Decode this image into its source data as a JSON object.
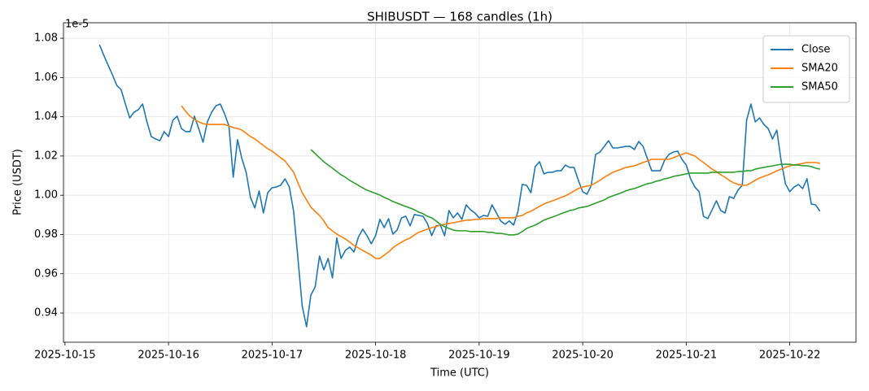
{
  "chart_data": {
    "type": "line",
    "title": "SHIBUSDT — 168 candles (1h)",
    "x_label": "Time (UTC)",
    "y_label": "Price (USDT)",
    "y_scale_label": "1e-5",
    "grid": true,
    "legend": "upper right",
    "xlim": [
      -8.35,
      175.35
    ],
    "ylim": [
      0.9251,
      1.0879
    ],
    "xticks": [
      {
        "value": -8,
        "label": "2025-10-15"
      },
      {
        "value": 16,
        "label": "2025-10-16"
      },
      {
        "value": 40,
        "label": "2025-10-17"
      },
      {
        "value": 64,
        "label": "2025-10-18"
      },
      {
        "value": 88,
        "label": "2025-10-19"
      },
      {
        "value": 112,
        "label": "2025-10-20"
      },
      {
        "value": 136,
        "label": "2025-10-21"
      },
      {
        "value": 160,
        "label": "2025-10-22"
      }
    ],
    "yticks": [
      0.94,
      0.96,
      0.98,
      {
        "value": 1.0,
        "label": "1.00"
      },
      1.02,
      1.04,
      1.06,
      1.08
    ],
    "x": [
      0,
      1,
      2,
      3,
      4,
      5,
      6,
      7,
      8,
      9,
      10,
      11,
      12,
      13,
      14,
      15,
      16,
      17,
      18,
      19,
      20,
      21,
      22,
      23,
      24,
      25,
      26,
      27,
      28,
      29,
      30,
      31,
      32,
      33,
      34,
      35,
      36,
      37,
      38,
      39,
      40,
      41,
      42,
      43,
      44,
      45,
      46,
      47,
      48,
      49,
      50,
      51,
      52,
      53,
      54,
      55,
      56,
      57,
      58,
      59,
      60,
      61,
      62,
      63,
      64,
      65,
      66,
      67,
      68,
      69,
      70,
      71,
      72,
      73,
      74,
      75,
      76,
      77,
      78,
      79,
      80,
      81,
      82,
      83,
      84,
      85,
      86,
      87,
      88,
      89,
      90,
      91,
      92,
      93,
      94,
      95,
      96,
      97,
      98,
      99,
      100,
      101,
      102,
      103,
      104,
      105,
      106,
      107,
      108,
      109,
      110,
      111,
      112,
      113,
      114,
      115,
      116,
      117,
      118,
      119,
      120,
      121,
      122,
      123,
      124,
      125,
      126,
      127,
      128,
      129,
      130,
      131,
      132,
      133,
      134,
      135,
      136,
      137,
      138,
      139,
      140,
      141,
      142,
      143,
      144,
      145,
      146,
      147,
      148,
      149,
      150,
      151,
      152,
      153,
      154,
      155,
      156,
      157,
      158,
      159,
      160,
      161,
      162,
      163,
      164,
      165,
      166,
      167
    ],
    "series": [
      {
        "name": "Close",
        "color": "#1f77b4",
        "values": [
          1.0767,
          1.0713,
          1.0663,
          1.0614,
          1.056,
          1.0539,
          1.0465,
          1.0394,
          1.0423,
          1.0436,
          1.0465,
          1.0374,
          1.0299,
          1.0287,
          1.0278,
          1.0324,
          1.0299,
          1.0382,
          1.0403,
          1.034,
          1.0324,
          1.0324,
          1.0403,
          1.034,
          1.027,
          1.0374,
          1.0423,
          1.0456,
          1.0465,
          1.0415,
          1.0353,
          1.0092,
          1.0283,
          1.0187,
          1.0117,
          0.9989,
          0.9935,
          1.0022,
          0.991,
          1.0013,
          1.0038,
          1.0042,
          1.0051,
          1.0084,
          1.0042,
          0.9918,
          0.9678,
          0.9434,
          0.933,
          0.9492,
          0.9533,
          0.969,
          0.962,
          0.9678,
          0.9579,
          0.9782,
          0.9678,
          0.9719,
          0.9736,
          0.9711,
          0.9786,
          0.9827,
          0.9794,
          0.9753,
          0.9794,
          0.9877,
          0.9835,
          0.9881,
          0.9802,
          0.9823,
          0.9885,
          0.9893,
          0.9844,
          0.9902,
          0.9897,
          0.9893,
          0.9856,
          0.9794,
          0.9844,
          0.9848,
          0.9794,
          0.9922,
          0.9885,
          0.991,
          0.9877,
          0.9951,
          0.9926,
          0.991,
          0.9885,
          0.9897,
          0.9893,
          0.9951,
          0.991,
          0.9869,
          0.9852,
          0.9869,
          0.9848,
          0.9918,
          1.0055,
          1.0051,
          1.0013,
          1.0146,
          1.0171,
          1.0109,
          1.0117,
          1.0117,
          1.0125,
          1.0125,
          1.0154,
          1.0142,
          1.0142,
          1.0076,
          1.0018,
          1.0005,
          1.0051,
          1.0208,
          1.022,
          1.0249,
          1.0278,
          1.0241,
          1.0241,
          1.0245,
          1.0249,
          1.0249,
          1.0233,
          1.0274,
          1.0249,
          1.0187,
          1.0125,
          1.0125,
          1.0125,
          1.0179,
          1.0208,
          1.022,
          1.0225,
          1.0183,
          1.0154,
          1.0084,
          1.0042,
          1.0018,
          0.9893,
          0.9881,
          0.9926,
          0.9972,
          0.9922,
          0.991,
          0.9993,
          0.9984,
          1.0026,
          1.0051,
          1.0382,
          1.0465,
          1.0374,
          1.0394,
          1.0361,
          1.034,
          1.0287,
          1.0332,
          1.0175,
          1.0059,
          1.0018,
          1.0042,
          1.0055,
          1.0034,
          1.0084,
          0.9955,
          0.9951,
          0.9918
        ]
      },
      {
        "name": "SMA20",
        "color": "#ff7f0e",
        "values": [
          null,
          null,
          null,
          null,
          null,
          null,
          null,
          null,
          null,
          null,
          null,
          null,
          null,
          null,
          null,
          null,
          null,
          null,
          null,
          1.0456,
          1.0427,
          1.0403,
          1.0386,
          1.0374,
          1.0365,
          1.0361,
          1.0361,
          1.0361,
          1.0361,
          1.0361,
          1.0353,
          1.0345,
          1.034,
          1.0332,
          1.0316,
          1.0299,
          1.0287,
          1.027,
          1.0254,
          1.0237,
          1.0225,
          1.0208,
          1.0191,
          1.0175,
          1.0146,
          1.0117,
          1.0063,
          1.0013,
          0.9976,
          0.9939,
          0.9918,
          0.9897,
          0.9869,
          0.9835,
          0.9819,
          0.9802,
          0.979,
          0.9777,
          0.9761,
          0.9744,
          0.9732,
          0.9719,
          0.9707,
          0.9695,
          0.9678,
          0.9678,
          0.9695,
          0.9711,
          0.9732,
          0.9748,
          0.9761,
          0.9773,
          0.9782,
          0.9798,
          0.9811,
          0.9819,
          0.9827,
          0.9835,
          0.984,
          0.9848,
          0.9852,
          0.9856,
          0.986,
          0.9864,
          0.9869,
          0.9873,
          0.9873,
          0.9877,
          0.9877,
          0.9881,
          0.9881,
          0.9881,
          0.9881,
          0.9885,
          0.9885,
          0.9885,
          0.9885,
          0.9893,
          0.9897,
          0.991,
          0.9918,
          0.9931,
          0.9943,
          0.9955,
          0.9964,
          0.9972,
          0.998,
          0.9989,
          0.9997,
          1.0009,
          1.0022,
          1.0034,
          1.0042,
          1.0047,
          1.0051,
          1.0063,
          1.0076,
          1.0092,
          1.0104,
          1.0117,
          1.0125,
          1.0133,
          1.0142,
          1.0146,
          1.015,
          1.0158,
          1.0167,
          1.0175,
          1.0183,
          1.0183,
          1.0183,
          1.0183,
          1.0183,
          1.0191,
          1.02,
          1.0208,
          1.0216,
          1.0208,
          1.02,
          1.0183,
          1.0167,
          1.015,
          1.0133,
          1.0121,
          1.0104,
          1.0092,
          1.0076,
          1.0063,
          1.0055,
          1.0051,
          1.0051,
          1.0063,
          1.0076,
          1.0088,
          1.0096,
          1.0104,
          1.0113,
          1.0125,
          1.0133,
          1.0142,
          1.015,
          1.0154,
          1.0158,
          1.0162,
          1.0167,
          1.0167,
          1.0167,
          1.0162
        ]
      },
      {
        "name": "SMA50",
        "color": "#2ca02c",
        "values": [
          null,
          null,
          null,
          null,
          null,
          null,
          null,
          null,
          null,
          null,
          null,
          null,
          null,
          null,
          null,
          null,
          null,
          null,
          null,
          null,
          null,
          null,
          null,
          null,
          null,
          null,
          null,
          null,
          null,
          null,
          null,
          null,
          null,
          null,
          null,
          null,
          null,
          null,
          null,
          null,
          null,
          null,
          null,
          null,
          null,
          null,
          null,
          null,
          null,
          1.0233,
          1.0212,
          1.0191,
          1.0171,
          1.0154,
          1.0138,
          1.0121,
          1.0104,
          1.0092,
          1.0076,
          1.0063,
          1.0051,
          1.0038,
          1.0026,
          1.0018,
          1.0009,
          1.0001,
          0.9989,
          0.998,
          0.9968,
          0.996,
          0.9951,
          0.9943,
          0.9935,
          0.9926,
          0.9914,
          0.9906,
          0.9893,
          0.9885,
          0.9869,
          0.9852,
          0.984,
          0.9831,
          0.9823,
          0.9819,
          0.9819,
          0.9819,
          0.9815,
          0.9815,
          0.9815,
          0.9815,
          0.9811,
          0.9811,
          0.9806,
          0.9806,
          0.9802,
          0.9798,
          0.9798,
          0.9802,
          0.9815,
          0.9831,
          0.984,
          0.9848,
          0.986,
          0.9873,
          0.9881,
          0.9889,
          0.9897,
          0.9906,
          0.9914,
          0.9922,
          0.9926,
          0.9935,
          0.9939,
          0.9943,
          0.9951,
          0.996,
          0.9968,
          0.9976,
          0.9989,
          0.9997,
          1.0005,
          1.0013,
          1.0022,
          1.003,
          1.0034,
          1.0042,
          1.0051,
          1.0059,
          1.0063,
          1.0071,
          1.0076,
          1.0084,
          1.0088,
          1.0096,
          1.01,
          1.0104,
          1.0109,
          1.0113,
          1.0113,
          1.0113,
          1.0113,
          1.0113,
          1.0117,
          1.0117,
          1.0117,
          1.0117,
          1.0117,
          1.0117,
          1.0121,
          1.0121,
          1.0125,
          1.0125,
          1.0133,
          1.0138,
          1.0142,
          1.0146,
          1.015,
          1.0154,
          1.0158,
          1.0158,
          1.0158,
          1.0154,
          1.0154,
          1.015,
          1.015,
          1.0146,
          1.0138,
          1.0133
        ]
      }
    ]
  }
}
